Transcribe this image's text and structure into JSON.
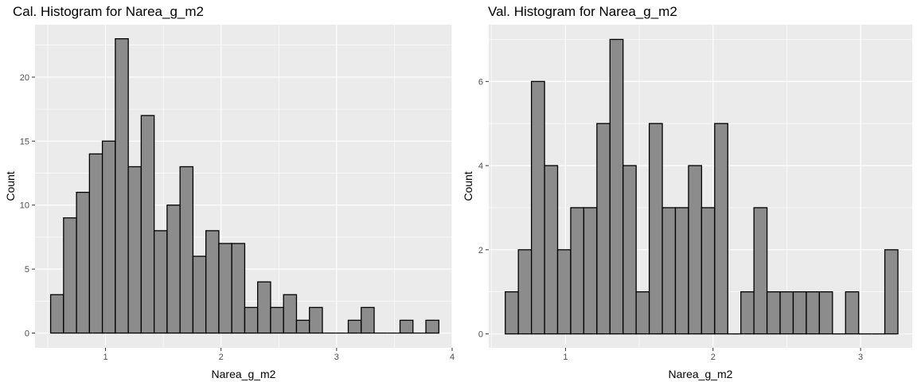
{
  "chart_data": [
    {
      "type": "bar",
      "subtype": "histogram",
      "title": "Cal. Histogram for Narea_g_m2",
      "xlabel": "Narea_g_m2",
      "ylabel": "Count",
      "xlim": [
        0.39,
        4.0
      ],
      "ylim": [
        -1.15,
        24.1
      ],
      "xticks": [
        1,
        2,
        3,
        4
      ],
      "yticks": [
        0,
        5,
        10,
        15,
        20
      ],
      "bin_width": 0.112,
      "bin_start": 0.525,
      "values": [
        3,
        9,
        11,
        14,
        15,
        23,
        13,
        17,
        8,
        10,
        13,
        6,
        8,
        7,
        7,
        2,
        4,
        2,
        3,
        1,
        2,
        0,
        0,
        1,
        2,
        0,
        0,
        1,
        0,
        1
      ],
      "grid": true,
      "background": "#ebebeb",
      "bar_fill": "#8c8c8c",
      "bar_stroke": "#000000"
    },
    {
      "type": "bar",
      "subtype": "histogram",
      "title": "Val. Histogram for Narea_g_m2",
      "xlabel": "Narea_g_m2",
      "ylabel": "Count",
      "xlim": [
        0.48,
        3.35
      ],
      "ylim": [
        -0.33,
        7.35
      ],
      "xticks": [
        1,
        2,
        3
      ],
      "yticks": [
        0,
        2,
        4,
        6
      ],
      "bin_width": 0.0887,
      "bin_start": 0.592,
      "values": [
        1,
        2,
        6,
        4,
        2,
        3,
        3,
        5,
        7,
        4,
        1,
        5,
        3,
        3,
        4,
        3,
        5,
        0,
        1,
        3,
        1,
        1,
        1,
        1,
        1,
        0,
        1,
        0,
        0,
        2
      ],
      "grid": true,
      "background": "#ebebeb",
      "bar_fill": "#8c8c8c",
      "bar_stroke": "#000000"
    }
  ]
}
